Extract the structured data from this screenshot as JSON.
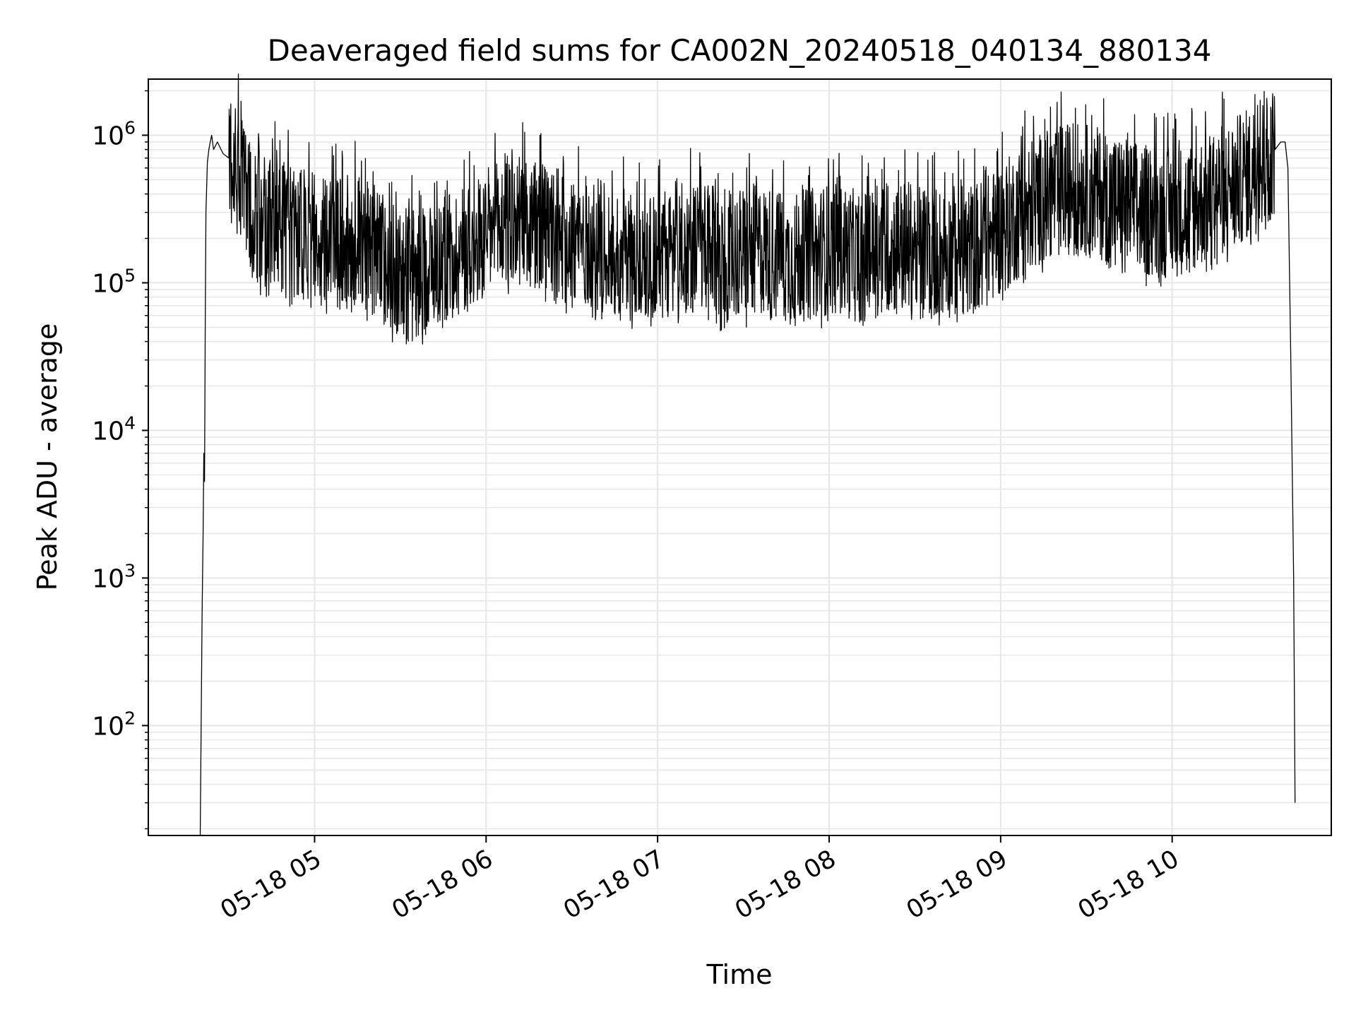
{
  "chart_data": {
    "type": "line",
    "title": "Deaveraged field sums for CA002N_20240518_040134_880134",
    "xlabel": "Time",
    "ylabel": "Peak ADU - average",
    "yscale": "log",
    "ylim": [
      18,
      2400000
    ],
    "xlim": [
      "2024-05-18 04:01:50",
      "2024-05-18 10:55:40"
    ],
    "grid": true,
    "legend": "none",
    "line_color": "#000000",
    "grid_color": "#e6e6e6",
    "x_ticks": [
      {
        "t": "2024-05-18 05:00",
        "label": "05-18 05"
      },
      {
        "t": "2024-05-18 06:00",
        "label": "05-18 06"
      },
      {
        "t": "2024-05-18 07:00",
        "label": "05-18 07"
      },
      {
        "t": "2024-05-18 08:00",
        "label": "05-18 08"
      },
      {
        "t": "2024-05-18 09:00",
        "label": "05-18 09"
      },
      {
        "t": "2024-05-18 10:00",
        "label": "05-18 10"
      }
    ],
    "y_ticks": [
      {
        "value": 100,
        "base": "10",
        "exp": "2"
      },
      {
        "value": 1000,
        "base": "10",
        "exp": "3"
      },
      {
        "value": 10000,
        "base": "10",
        "exp": "4"
      },
      {
        "value": 100000,
        "base": "10",
        "exp": "5"
      },
      {
        "value": 1000000,
        "base": "10",
        "exp": "6"
      }
    ],
    "series": [
      {
        "x": [
          "04:20:00",
          "04:20:40",
          "04:21:00",
          "04:21:15",
          "04:21:30",
          "04:21:45",
          "04:22:00",
          "04:22:30",
          "04:23:00",
          "04:23:30",
          "04:24:00",
          "04:24:40",
          "04:26:00",
          "04:28:00",
          "04:30:00",
          "04:33:00",
          "04:36:00",
          "04:39:00",
          "04:42:00",
          "04:45:00",
          "04:48:00",
          "04:51:00",
          "04:54:00",
          "04:57:00",
          "05:00:00",
          "05:05:00",
          "05:10:00",
          "05:15:00",
          "05:20:00",
          "05:25:00",
          "05:30:00",
          "05:35:00",
          "05:40:00",
          "05:45:00",
          "05:50:00",
          "05:55:00",
          "06:00:00",
          "06:05:00",
          "06:10:00",
          "06:15:00",
          "06:20:00",
          "06:25:00",
          "06:30:00",
          "06:35:00",
          "06:40:00",
          "06:45:00",
          "06:50:00",
          "06:55:00",
          "07:00:00",
          "07:05:00",
          "07:10:00",
          "07:15:00",
          "07:20:00",
          "07:25:00",
          "07:30:00",
          "07:35:00",
          "07:40:00",
          "07:45:00",
          "07:50:00",
          "07:55:00",
          "08:00:00",
          "08:05:00",
          "08:10:00",
          "08:15:00",
          "08:20:00",
          "08:25:00",
          "08:30:00",
          "08:35:00",
          "08:40:00",
          "08:45:00",
          "08:50:00",
          "08:55:00",
          "09:00:00",
          "09:05:00",
          "09:10:00",
          "09:15:00",
          "09:20:00",
          "09:25:00",
          "09:30:00",
          "09:35:00",
          "09:40:00",
          "09:45:00",
          "09:50:00",
          "09:55:00",
          "10:00:00",
          "10:05:00",
          "10:10:00",
          "10:15:00",
          "10:20:00",
          "10:25:00",
          "10:30:00",
          "10:33:00",
          "10:36:00",
          "10:38:00",
          "10:39:30",
          "10:40:30",
          "10:41:30",
          "10:42:30",
          "10:43:00"
        ],
        "y": [
          18,
          600,
          2000,
          7000,
          4500,
          50000,
          300000,
          650000,
          800000,
          900000,
          1000000,
          800000,
          900000,
          750000,
          700000,
          600000,
          400000,
          300000,
          250000,
          280000,
          250000,
          230000,
          220000,
          210000,
          200000,
          180000,
          190000,
          200000,
          170000,
          140000,
          120000,
          110000,
          130000,
          150000,
          160000,
          180000,
          210000,
          240000,
          260000,
          250000,
          230000,
          210000,
          200000,
          190000,
          180000,
          160000,
          150000,
          145000,
          150000,
          165000,
          175000,
          170000,
          160000,
          150000,
          160000,
          170000,
          160000,
          140000,
          150000,
          160000,
          170000,
          165000,
          150000,
          160000,
          170000,
          180000,
          175000,
          165000,
          160000,
          165000,
          170000,
          190000,
          230000,
          280000,
          340000,
          380000,
          420000,
          440000,
          430000,
          400000,
          370000,
          340000,
          310000,
          300000,
          300000,
          320000,
          350000,
          400000,
          450000,
          520000,
          620000,
          700000,
          800000,
          900000,
          900000,
          600000,
          30000,
          1000,
          30
        ]
      }
    ]
  }
}
